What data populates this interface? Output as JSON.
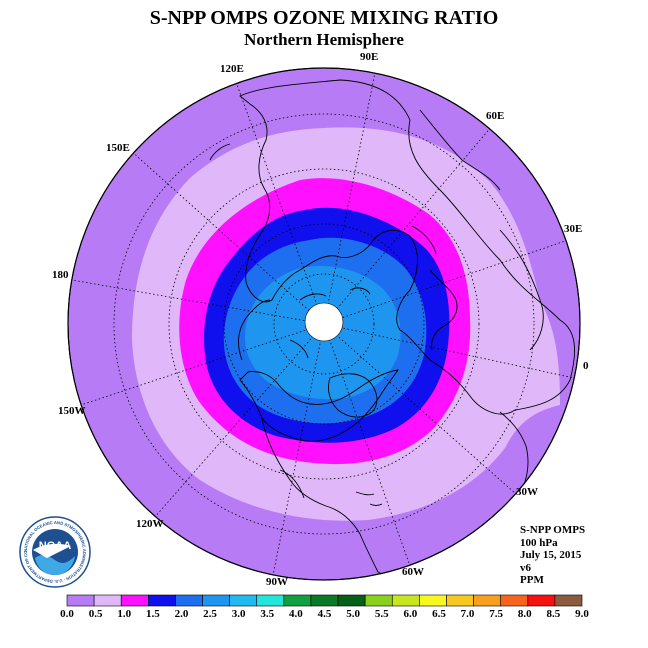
{
  "title": "S-NPP OMPS OZONE MIXING RATIO",
  "subtitle": "Northern Hemisphere",
  "longitude_labels": [
    "90E",
    "60E",
    "30E",
    "0",
    "30W",
    "60W",
    "90W",
    "120W",
    "150W",
    "180",
    "150E",
    "120E"
  ],
  "info": {
    "instrument": "S-NPP OMPS",
    "level": "100 hPa",
    "date": "July 15, 2015",
    "version": "v6",
    "units": "PPM"
  },
  "logo": {
    "text": "NOAA",
    "ring_text": "NATIONAL OCEANIC AND ATMOSPHERIC ADMINISTRATION · U.S. DEPARTMENT OF COMMERCE",
    "name": "noaa-logo"
  },
  "colorbar": {
    "ticks": [
      "0.0",
      "0.5",
      "1.0",
      "1.5",
      "2.0",
      "2.5",
      "3.0",
      "3.5",
      "4.0",
      "4.5",
      "5.0",
      "5.5",
      "6.0",
      "6.5",
      "7.0",
      "7.5",
      "8.0",
      "8.5",
      "9.0"
    ],
    "colors": [
      "#b77cf5",
      "#e0b8fa",
      "#ff10ff",
      "#1010ee",
      "#1e6ef0",
      "#1e96f0",
      "#1ebaf0",
      "#22e6dc",
      "#10a040",
      "#0a7a28",
      "#066018",
      "#8cd01e",
      "#c8e61e",
      "#f8f81e",
      "#f8c81e",
      "#f8a01e",
      "#f8641e",
      "#f81010",
      "#8c5a3c"
    ]
  },
  "chart_data": {
    "type": "heatmap",
    "projection": "north-polar-stereographic",
    "variable": "ozone mixing ratio",
    "units": "PPM",
    "level": "100 hPa",
    "date": "July 15, 2015",
    "bins": [
      0.0,
      0.5,
      1.0,
      1.5,
      2.0,
      2.5,
      3.0,
      3.5,
      4.0,
      4.5,
      5.0,
      5.5,
      6.0,
      6.5,
      7.0,
      7.5,
      8.0,
      8.5,
      9.0
    ],
    "features": "highest values (2.0-3.0 PPM) over the pole; values decrease to 0.0-0.5 PPM toward lower latitudes; no data at the pole itself"
  }
}
